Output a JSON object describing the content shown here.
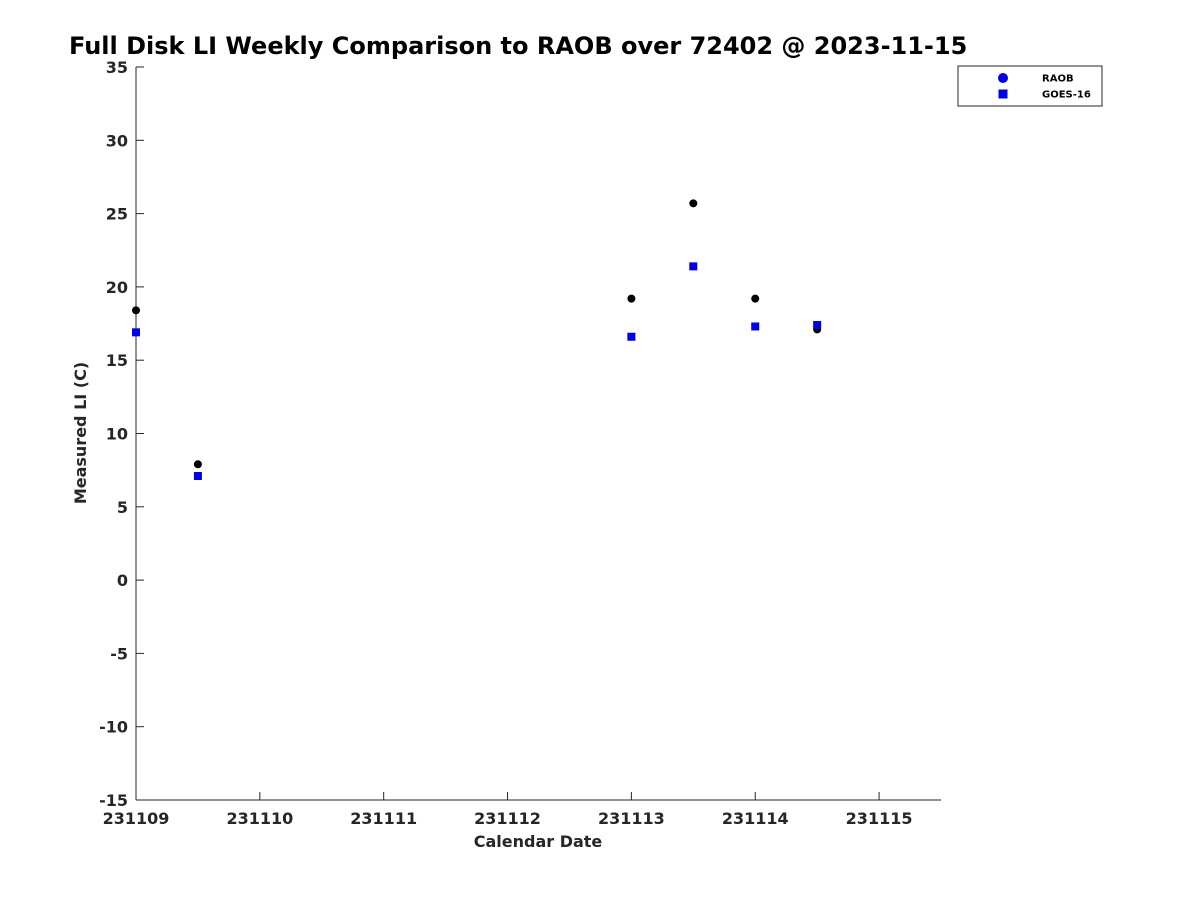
{
  "chart_data": {
    "type": "scatter",
    "title": "Full Disk LI Weekly Comparison to RAOB over 72402 @ 2023-11-15",
    "xlabel": "Calendar Date",
    "ylabel": "Measured LI (C)",
    "xlim": [
      "231109",
      "231115.5"
    ],
    "ylim": [
      -15,
      35
    ],
    "x_ticks": [
      "231109",
      "231110",
      "231111",
      "231112",
      "231113",
      "231114",
      "231115"
    ],
    "y_ticks": [
      "35",
      "30",
      "25",
      "20",
      "15",
      "10",
      "5",
      "0",
      "-5",
      "-10",
      "-15"
    ],
    "grid": false,
    "legend_position": "top-right",
    "series": [
      {
        "name": "RAOB",
        "marker": "circle",
        "color": "#000000",
        "legend_color": "#0000e6",
        "points": [
          {
            "x": "231109 00Z",
            "y": 18.4
          },
          {
            "x": "231109 12Z",
            "y": 7.9
          },
          {
            "x": "231113 00Z",
            "y": 19.2
          },
          {
            "x": "231113 12Z",
            "y": 25.7
          },
          {
            "x": "231114 00Z",
            "y": 19.2
          },
          {
            "x": "231114 12Z",
            "y": 17.1
          }
        ]
      },
      {
        "name": "GOES-16",
        "marker": "square",
        "color": "#0000e6",
        "legend_color": "#0000e6",
        "points": [
          {
            "x": "231109 00Z",
            "y": 16.9
          },
          {
            "x": "231109 12Z",
            "y": 7.1
          },
          {
            "x": "231113 00Z",
            "y": 16.6
          },
          {
            "x": "231113 12Z",
            "y": 21.4
          },
          {
            "x": "231114 00Z",
            "y": 17.3
          },
          {
            "x": "231114 12Z",
            "y": 17.4
          }
        ]
      }
    ]
  }
}
